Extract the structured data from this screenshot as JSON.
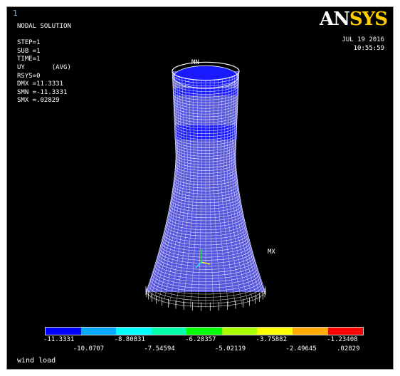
{
  "window_number": "1",
  "info_lines": [
    "NODAL SOLUTION",
    "",
    "STEP=1",
    "SUB =1",
    "TIME=1",
    "UY       (AVG)",
    "RSYS=0",
    "DMX =11.3331",
    "SMN =-11.3331",
    "SMX =.02829"
  ],
  "logo": {
    "part1": "AN",
    "part2": "SYS"
  },
  "date": "JUL 19 2016",
  "time": "10:55:59",
  "markers": {
    "min": "MN",
    "max": "MX"
  },
  "legend": {
    "colors": [
      "#0000ff",
      "#00aaff",
      "#00ffff",
      "#00ffaa",
      "#00ff00",
      "#aaff00",
      "#ffff00",
      "#ffaa00",
      "#ff0000"
    ],
    "ticks_top": [
      "-11.3331",
      "-8.80831",
      "-6.28357",
      "-3.75882",
      "-1.23408"
    ],
    "ticks_bottom": [
      "-10.0707",
      "-7.54594",
      "-5.02119",
      "-2.49645",
      ".02829"
    ]
  },
  "caption": "wind load",
  "colors": {
    "mesh": "#ffffff",
    "shell": "#5555dd",
    "band": "#1a1aff",
    "background": "#000000"
  }
}
